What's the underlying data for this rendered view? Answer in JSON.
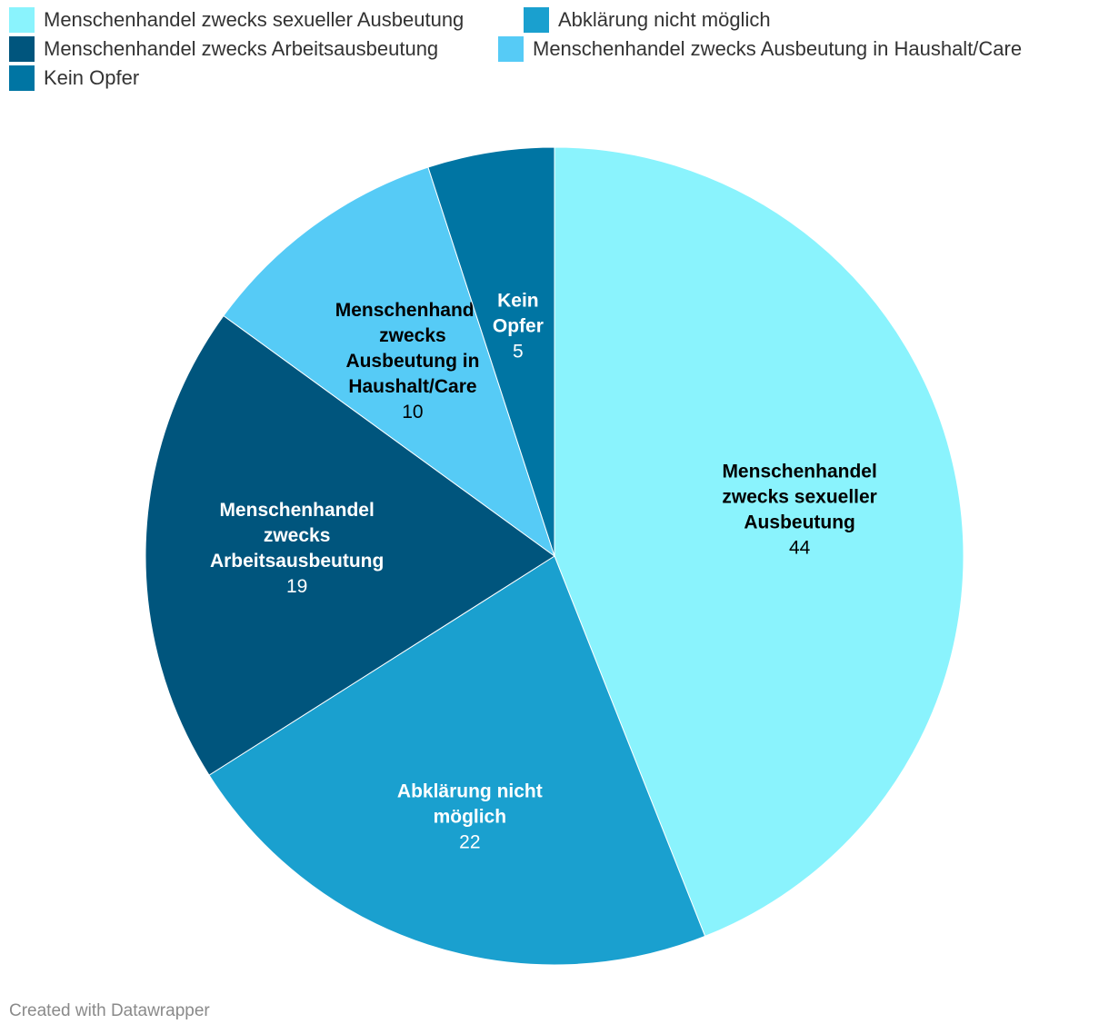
{
  "chart_data": {
    "type": "pie",
    "categories": [
      "Menschenhandel zwecks sexueller Ausbeutung",
      "Abklärung nicht möglich",
      "Menschenhandel zwecks Arbeitsausbeutung",
      "Menschenhandel zwecks Ausbeutung in Haushalt/Care",
      "Kein Opfer"
    ],
    "values": [
      44,
      22,
      19,
      10,
      5
    ],
    "colors": [
      "#8af3fd",
      "#1aa0cf",
      "#00557d",
      "#56cbf6",
      "#0075a3"
    ],
    "label_colors": [
      "#000000",
      "#ffffff",
      "#ffffff",
      "#000000",
      "#ffffff"
    ],
    "slice_labels": [
      [
        "Menschenhandel",
        "zwecks sexueller",
        "Ausbeutung"
      ],
      [
        "Abklärung nicht",
        "möglich"
      ],
      [
        "Menschenhandel",
        "zwecks",
        "Arbeitsausbeutung"
      ],
      [
        "Menschenhandel",
        "zwecks",
        "Ausbeutung in",
        "Haushalt/Care"
      ],
      [
        "Kein",
        "Opfer"
      ]
    ],
    "legend": [
      [
        "Menschenhandel zwecks sexueller Ausbeutung",
        "Abklärung nicht möglich"
      ],
      [
        "Menschenhandel zwecks Arbeitsausbeutung",
        "Menschenhandel zwecks Ausbeutung in Haushalt/Care"
      ],
      [
        "Kein Opfer"
      ]
    ],
    "legend_position": "top-left"
  },
  "footer": "Created with Datawrapper"
}
